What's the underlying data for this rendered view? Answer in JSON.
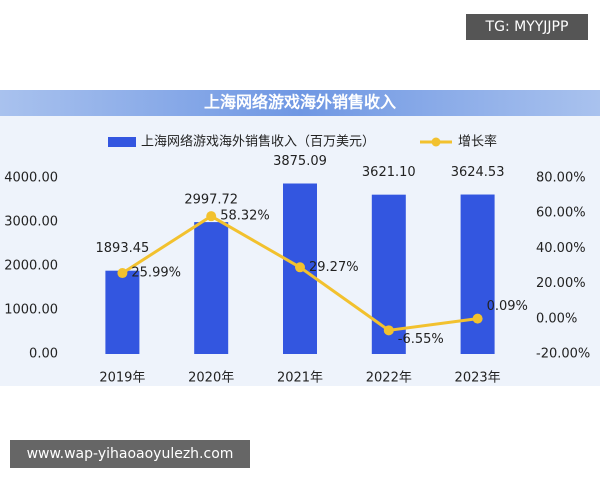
{
  "watermark_top": "TG: MYYJJPP",
  "watermark_bottom": "www.wap-yihaoaoyulezh.com",
  "chart_data": {
    "type": "bar",
    "title": "上海网络游戏海外销售收入",
    "categories": [
      "2019年",
      "2020年",
      "2021年",
      "2022年",
      "2023年"
    ],
    "series": [
      {
        "name": "上海网络游戏海外销售收入（百万美元）",
        "color": "#3356e0",
        "values": [
          1893.45,
          2997.72,
          3875.09,
          3621.1,
          3624.53
        ],
        "value_labels": [
          "1893.45",
          "2997.72",
          "3875.09",
          "3621.10",
          "3624.53"
        ]
      },
      {
        "name": "增长率",
        "type": "line",
        "axis": "y2",
        "color": "#f2c12e",
        "values": [
          25.99,
          58.32,
          29.27,
          -6.55,
          0.09
        ],
        "value_labels": [
          "25.99%",
          "58.32%",
          "29.27%",
          "-6.55%",
          "0.09%"
        ]
      }
    ],
    "ylim": [
      0,
      4000
    ],
    "yticks": [
      {
        "value": 0,
        "label": "0.00"
      },
      {
        "value": 1000,
        "label": "1000.00"
      },
      {
        "value": 2000,
        "label": "2000.00"
      },
      {
        "value": 3000,
        "label": "3000.00"
      },
      {
        "value": 4000,
        "label": "4000.00"
      }
    ],
    "y2lim": [
      -20,
      80
    ],
    "y2ticks": [
      {
        "value": -20,
        "label": "-20.00%"
      },
      {
        "value": 0,
        "label": "0.00%"
      },
      {
        "value": 20,
        "label": "20.00%"
      },
      {
        "value": 40,
        "label": "40.00%"
      },
      {
        "value": 60,
        "label": "60.00%"
      },
      {
        "value": 80,
        "label": "80.00%"
      }
    ],
    "grid": false,
    "legend": "top"
  }
}
